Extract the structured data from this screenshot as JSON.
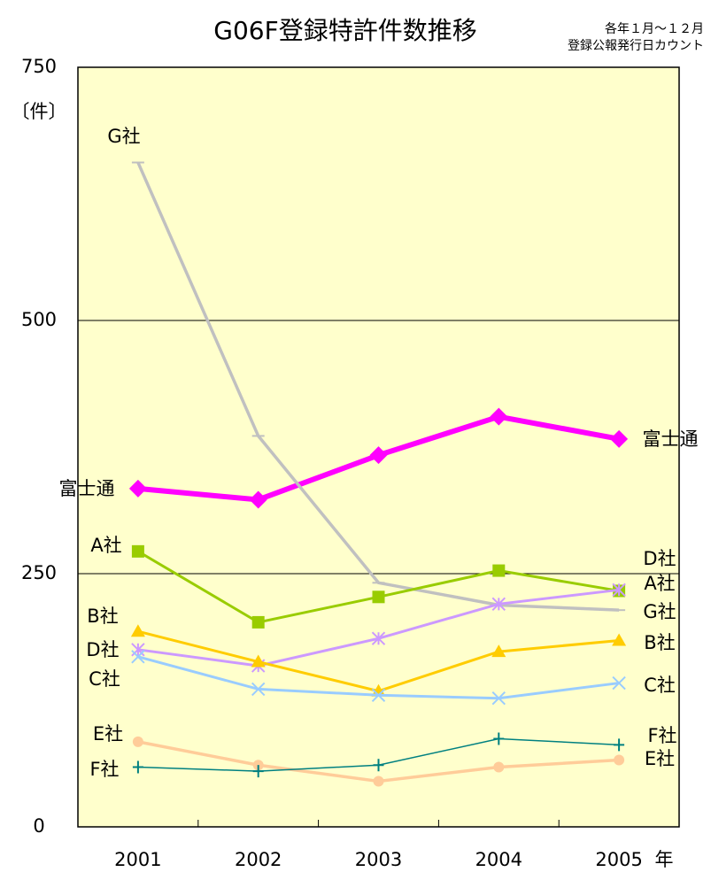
{
  "chart_data": {
    "type": "line",
    "title": "G06F登録特許件数推移",
    "notes": [
      "各年１月～１２月",
      "登録公報発行日カウント"
    ],
    "y_label": "〔件〕",
    "x_label": "年",
    "categories": [
      "2001",
      "2002",
      "2003",
      "2004",
      "2005"
    ],
    "ylim": [
      0,
      750
    ],
    "yticks": [
      0,
      250,
      500,
      750
    ],
    "grid": true,
    "series": [
      {
        "name": "富士通",
        "color": "#ff00ff",
        "marker": "diamond",
        "values": [
          334,
          323,
          367,
          405,
          383
        ]
      },
      {
        "name": "G社",
        "color": "#c0c0c0",
        "marker": "dash",
        "values": [
          656,
          386,
          241,
          219,
          214
        ]
      },
      {
        "name": "A社",
        "color": "#99cc00",
        "marker": "square",
        "values": [
          272,
          202,
          227,
          253,
          233
        ]
      },
      {
        "name": "D社",
        "color": "#cc99ff",
        "marker": "asterisk",
        "values": [
          175,
          159,
          186,
          220,
          234
        ]
      },
      {
        "name": "B社",
        "color": "#ffcc00",
        "marker": "triangle",
        "values": [
          193,
          163,
          134,
          173,
          184
        ]
      },
      {
        "name": "C社",
        "color": "#99ccff",
        "marker": "x",
        "values": [
          168,
          136,
          130,
          127,
          142
        ]
      },
      {
        "name": "E社",
        "color": "#ffcc99",
        "marker": "circle",
        "values": [
          84,
          61,
          45,
          59,
          66
        ]
      },
      {
        "name": "F社",
        "color": "#008080",
        "marker": "plus",
        "values": [
          59,
          55,
          61,
          87,
          81
        ]
      }
    ]
  }
}
